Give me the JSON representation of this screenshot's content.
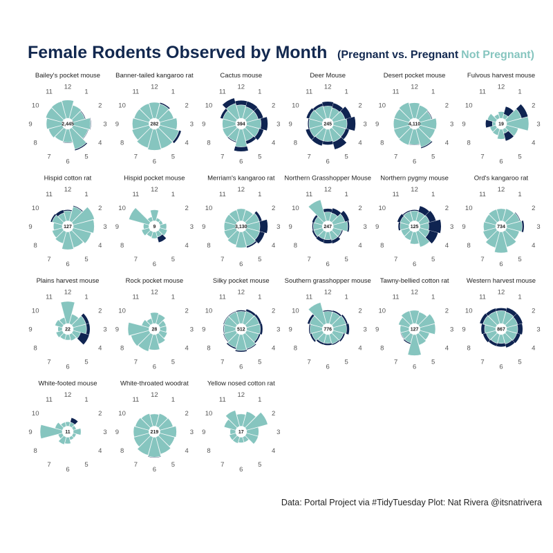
{
  "header": {
    "title": "Female Rodents Observed by Month",
    "subtitle_open": "(Pregnant vs. ",
    "subtitle_pregnant_word": "Pregnant",
    "subtitle_not_pregnant": "Not Pregnant)"
  },
  "caption": "Data: Portal Project via #TidyTuesday Plot: Nat Rivera @itsnatrivera",
  "colors": {
    "pregnant": "#0f2451",
    "not_pregnant": "#86c5bf",
    "title": "#12284f",
    "center_disc": "#ffffff"
  },
  "chart_data": {
    "type": "polar-bar",
    "facets": 21,
    "month_labels": [
      "12",
      "1",
      "2",
      "3",
      "4",
      "5",
      "6",
      "7",
      "8",
      "9",
      "10",
      "11"
    ],
    "series": [
      {
        "name": "Pregnant",
        "color": "#0f2451"
      },
      {
        "name": "Not Pregnant",
        "color": "#86c5bf"
      }
    ],
    "value_scale": "relative (per panel)",
    "panels": [
      {
        "name": "Bailey's pocket mouse",
        "total": "2,445",
        "not_pregnant": [
          0.82,
          0.62,
          0.55,
          0.78,
          0.7,
          0.95,
          0.6,
          0.58,
          0.65,
          0.72,
          0.78,
          0.8
        ],
        "pregnant": [
          0.82,
          0.62,
          0.58,
          0.8,
          0.72,
          1.0,
          0.62,
          0.58,
          0.65,
          0.72,
          0.78,
          0.8
        ]
      },
      {
        "name": "Banner-tailed kangaroo rat",
        "total": "282",
        "not_pregnant": [
          0.72,
          0.68,
          0.65,
          0.78,
          0.9,
          0.92,
          0.95,
          0.88,
          0.8,
          0.75,
          0.7,
          0.7
        ],
        "pregnant": [
          0.72,
          0.74,
          0.65,
          0.78,
          1.0,
          0.92,
          0.95,
          0.88,
          0.8,
          0.75,
          0.7,
          0.7
        ]
      },
      {
        "name": "Cactus mouse",
        "total": "394",
        "not_pregnant": [
          0.6,
          0.55,
          0.55,
          0.65,
          0.6,
          0.55,
          0.8,
          0.58,
          0.62,
          0.6,
          0.6,
          0.7
        ],
        "pregnant": [
          0.8,
          0.8,
          0.78,
          0.95,
          0.8,
          0.7,
          1.0,
          0.62,
          0.62,
          0.6,
          0.72,
          0.95
        ]
      },
      {
        "name": "Deer Mouse",
        "total": "245",
        "not_pregnant": [
          0.55,
          0.5,
          0.55,
          0.62,
          0.58,
          0.6,
          0.55,
          0.55,
          0.6,
          0.6,
          0.62,
          0.58
        ],
        "pregnant": [
          0.75,
          0.72,
          0.85,
          1.0,
          0.75,
          0.95,
          0.7,
          0.78,
          0.78,
          0.65,
          0.75,
          0.7
        ]
      },
      {
        "name": "Desert pocket mouse",
        "total": "4,110",
        "not_pregnant": [
          0.7,
          0.62,
          0.55,
          0.75,
          0.72,
          0.85,
          0.7,
          0.75,
          0.72,
          0.7,
          0.7,
          0.75
        ],
        "pregnant": [
          0.7,
          0.62,
          0.58,
          0.75,
          0.72,
          0.9,
          0.72,
          0.75,
          0.72,
          0.7,
          0.7,
          0.75
        ]
      },
      {
        "name": "Fulvous harvest mouse",
        "total": "19",
        "not_pregnant": [
          0.3,
          0.2,
          0.7,
          1.0,
          0.55,
          0.2,
          0.45,
          0.3,
          0.28,
          0.15,
          0.4,
          0.2
        ],
        "pregnant": [
          0.3,
          0.55,
          1.0,
          1.0,
          0.55,
          0.55,
          0.45,
          0.3,
          0.28,
          0.45,
          0.4,
          0.2
        ]
      },
      {
        "name": "Hispid cotton rat",
        "total": "127",
        "not_pregnant": [
          0.45,
          0.68,
          1.0,
          0.95,
          0.85,
          0.75,
          0.8,
          0.55,
          0.48,
          0.4,
          0.48,
          0.38
        ],
        "pregnant": [
          0.5,
          0.72,
          1.0,
          0.95,
          0.85,
          0.75,
          0.8,
          0.55,
          0.48,
          0.4,
          0.55,
          0.52
        ]
      },
      {
        "name": "Hispid pocket mouse",
        "total": "9",
        "not_pregnant": [
          0.5,
          0.15,
          0.15,
          0.3,
          0.35,
          0.25,
          0.3,
          0.25,
          0.35,
          0.25,
          0.95,
          0.2
        ],
        "pregnant": [
          0.5,
          0.15,
          0.15,
          0.3,
          0.35,
          0.5,
          0.3,
          0.25,
          0.35,
          0.25,
          0.95,
          0.2
        ]
      },
      {
        "name": "Merriam's kangaroo rat",
        "total": "3,130",
        "not_pregnant": [
          0.55,
          0.52,
          0.6,
          0.6,
          0.62,
          0.68,
          0.72,
          0.62,
          0.55,
          0.52,
          0.52,
          0.52
        ],
        "pregnant": [
          0.55,
          0.52,
          0.72,
          0.95,
          0.85,
          0.75,
          0.72,
          0.62,
          0.55,
          0.52,
          0.52,
          0.52
        ]
      },
      {
        "name": "Northern Grasshopper Mouse",
        "total": "247",
        "not_pregnant": [
          0.4,
          0.38,
          0.55,
          0.65,
          0.4,
          0.4,
          0.35,
          0.35,
          0.4,
          0.4,
          0.38,
          1.0
        ],
        "pregnant": [
          0.55,
          0.6,
          0.75,
          0.72,
          0.45,
          0.55,
          0.52,
          0.5,
          0.48,
          0.45,
          0.48,
          1.0
        ]
      },
      {
        "name": "Northern pygmy mouse",
        "total": "125",
        "not_pregnant": [
          0.45,
          0.42,
          0.45,
          0.4,
          0.45,
          0.72,
          0.55,
          0.4,
          0.38,
          0.4,
          0.42,
          0.45
        ],
        "pregnant": [
          0.5,
          0.7,
          0.75,
          0.95,
          0.85,
          0.72,
          0.55,
          0.4,
          0.38,
          0.48,
          0.55,
          0.5
        ]
      },
      {
        "name": "Ord's kangaroo rat",
        "total": "734",
        "not_pregnant": [
          0.55,
          0.58,
          0.62,
          0.7,
          0.6,
          0.72,
          0.95,
          0.75,
          0.6,
          0.55,
          0.52,
          0.55
        ],
        "pregnant": [
          0.55,
          0.58,
          0.65,
          0.78,
          0.6,
          0.72,
          0.95,
          0.75,
          0.6,
          0.55,
          0.52,
          0.55
        ]
      },
      {
        "name": "Plains harvest mouse",
        "total": "22",
        "not_pregnant": [
          1.0,
          0.45,
          0.6,
          0.6,
          0.35,
          0.3,
          0.25,
          0.25,
          0.3,
          0.2,
          0.35,
          0.3
        ],
        "pregnant": [
          1.0,
          0.45,
          0.75,
          0.75,
          0.75,
          0.3,
          0.25,
          0.25,
          0.3,
          0.2,
          0.35,
          0.3
        ]
      },
      {
        "name": "Rock pocket mouse",
        "total": "28",
        "not_pregnant": [
          0.5,
          0.45,
          0.3,
          0.3,
          0.35,
          0.45,
          0.7,
          0.8,
          0.85,
          0.95,
          0.35,
          0.25
        ],
        "pregnant": [
          0.5,
          0.45,
          0.3,
          0.3,
          0.35,
          0.45,
          0.7,
          0.8,
          0.85,
          0.95,
          0.35,
          0.25
        ]
      },
      {
        "name": "Silky pocket mouse",
        "total": "512",
        "not_pregnant": [
          0.55,
          0.58,
          0.6,
          0.62,
          0.58,
          0.68,
          0.72,
          0.62,
          0.55,
          0.52,
          0.55,
          0.55
        ],
        "pregnant": [
          0.6,
          0.68,
          0.7,
          0.72,
          0.65,
          0.72,
          0.78,
          0.68,
          0.58,
          0.55,
          0.58,
          0.58
        ]
      },
      {
        "name": "Southern grasshopper mouse",
        "total": "776",
        "not_pregnant": [
          0.55,
          0.55,
          0.6,
          0.6,
          0.48,
          0.45,
          0.4,
          0.4,
          0.5,
          0.55,
          0.6,
          1.0
        ],
        "pregnant": [
          0.6,
          0.62,
          0.68,
          0.72,
          0.55,
          0.5,
          0.48,
          0.48,
          0.58,
          0.6,
          0.7,
          1.0
        ]
      },
      {
        "name": "Tawny-bellied cotton rat",
        "total": "127",
        "not_pregnant": [
          0.6,
          0.55,
          0.72,
          0.7,
          0.45,
          0.5,
          0.95,
          0.4,
          0.38,
          0.4,
          0.5,
          0.6
        ],
        "pregnant": [
          0.6,
          0.55,
          0.72,
          0.7,
          0.45,
          0.5,
          0.95,
          0.45,
          0.4,
          0.4,
          0.5,
          0.6
        ]
      },
      {
        "name": "Western harvest mouse",
        "total": "867",
        "not_pregnant": [
          0.58,
          0.55,
          0.52,
          0.5,
          0.48,
          0.45,
          0.4,
          0.42,
          0.45,
          0.5,
          0.6,
          0.58
        ],
        "pregnant": [
          0.7,
          0.75,
          0.75,
          0.72,
          0.65,
          0.62,
          0.55,
          0.55,
          0.6,
          0.65,
          0.75,
          0.72
        ]
      },
      {
        "name": "White-footed mouse",
        "total": "11",
        "not_pregnant": [
          0.2,
          0.2,
          0.15,
          0.35,
          0.15,
          0.15,
          0.3,
          0.35,
          0.2,
          1.0,
          0.35,
          0.2
        ],
        "pregnant": [
          0.2,
          0.4,
          0.15,
          0.35,
          0.15,
          0.15,
          0.3,
          0.35,
          0.2,
          1.0,
          0.35,
          0.2
        ]
      },
      {
        "name": "White-throated woodrat",
        "total": "219",
        "not_pregnant": [
          0.55,
          0.6,
          0.62,
          0.75,
          0.7,
          0.8,
          0.9,
          0.85,
          0.72,
          0.7,
          0.65,
          0.6
        ],
        "pregnant": [
          0.55,
          0.6,
          0.62,
          0.75,
          0.7,
          0.8,
          0.92,
          0.85,
          0.72,
          0.7,
          0.65,
          0.6
        ]
      },
      {
        "name": "Yellow nosed cotton rat",
        "total": "17",
        "not_pregnant": [
          0.55,
          0.7,
          1.0,
          0.55,
          0.55,
          0.25,
          0.25,
          0.3,
          0.3,
          0.25,
          0.55,
          0.75
        ],
        "pregnant": [
          0.55,
          0.7,
          1.0,
          0.55,
          0.55,
          0.25,
          0.25,
          0.3,
          0.3,
          0.25,
          0.55,
          0.75
        ]
      }
    ]
  }
}
